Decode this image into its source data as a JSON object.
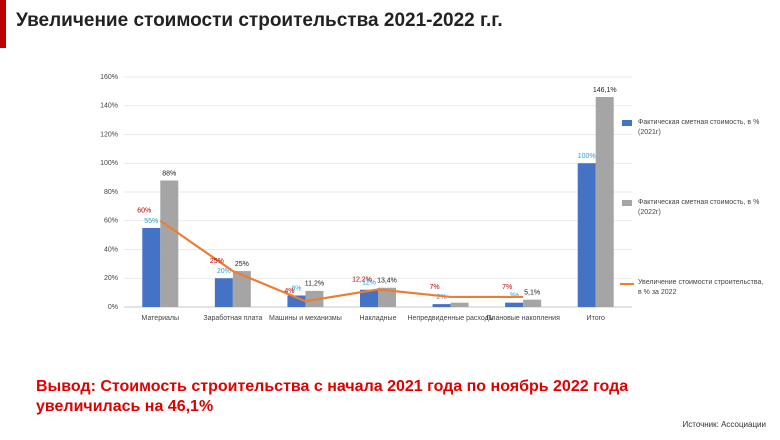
{
  "title": "Увеличение стоимости строительства 2021-2022 г.г.",
  "conclusion": "Вывод: Стоимость строительства с начала 2021 года по ноябрь 2022 года увеличилась на 46,1%",
  "source": "Источник: Ассоциации",
  "chart_data": {
    "type": "bar",
    "categories": [
      "Материалы",
      "Заработная плата",
      "Машины и механизмы",
      "Накладные",
      "Непредвиденные расходы",
      "Плановые накопления",
      "Итого"
    ],
    "series": [
      {
        "name": "Фактическая сметная стоимость, в % (2021г)",
        "type": "bar",
        "color": "#4472c4",
        "label_color": "#2e9fd0",
        "values": [
          55,
          20,
          8,
          12,
          2,
          3,
          100
        ],
        "value_labels": [
          "55%",
          "20%",
          "8%",
          "12%",
          "2%",
          "3%",
          "100%"
        ]
      },
      {
        "name": "Фактическая сметная стоимость, в % (2022г)",
        "type": "bar",
        "color": "#a5a5a5",
        "label_color": "#222222",
        "values": [
          88,
          25,
          11.2,
          13.4,
          3,
          5.1,
          146.1
        ],
        "value_labels": [
          "88%",
          "25%",
          "11,2%",
          "13,4%",
          null,
          "5,1%",
          "146,1%"
        ]
      },
      {
        "name": "Увеличение стоимости строительства, в % за 2022",
        "type": "line",
        "color": "#ed7d31",
        "label_color": "#c00000",
        "values": [
          60,
          25,
          4,
          12.2,
          7,
          7,
          null
        ],
        "value_labels": [
          "60%",
          "25%",
          "4%",
          "12,2%",
          "7%",
          "7%",
          null
        ]
      }
    ],
    "ylim": [
      0,
      160
    ],
    "yticks": [
      {
        "value": 0,
        "label": "0%"
      },
      {
        "value": 20,
        "label": "20%"
      },
      {
        "value": 40,
        "label": "40%"
      },
      {
        "value": 60,
        "label": "60%"
      },
      {
        "value": 80,
        "label": "80%"
      },
      {
        "value": 100,
        "label": "100%"
      },
      {
        "value": 120,
        "label": "120%"
      },
      {
        "value": 140,
        "label": "140%"
      },
      {
        "value": 160,
        "label": "160%"
      }
    ],
    "legend": "right"
  }
}
